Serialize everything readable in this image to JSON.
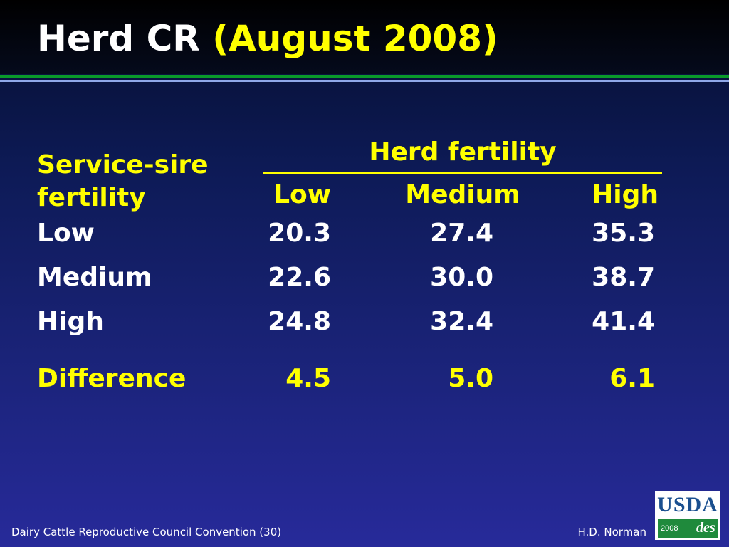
{
  "title": {
    "main": "Herd CR",
    "accent": "(August 2008)"
  },
  "table": {
    "row_header": "Service-sire fertility",
    "row_header_line1": "Service-sire",
    "row_header_line2": "fertility",
    "column_group": "Herd fertility",
    "columns": [
      "Low",
      "Medium",
      "High"
    ],
    "rows": [
      {
        "label": "Low",
        "values": [
          "20.3",
          "27.4",
          "35.3"
        ]
      },
      {
        "label": "Medium",
        "values": [
          "22.6",
          "30.0",
          "38.7"
        ]
      },
      {
        "label": "High",
        "values": [
          "24.8",
          "32.4",
          "41.4"
        ]
      }
    ],
    "difference": {
      "label": "Difference",
      "values": [
        "4.5",
        "5.0",
        "6.1"
      ]
    }
  },
  "footer": {
    "left": "Dairy Cattle Reproductive Council Convention (30)",
    "right": "H.D. Norman"
  },
  "logo": {
    "name": "USDA",
    "year": "2008",
    "mark": "des"
  },
  "colors": {
    "accent": "#ffff00",
    "text": "#ffffff",
    "rule_green": "#0a9a2a",
    "rule_blue": "#8fa8e8"
  }
}
